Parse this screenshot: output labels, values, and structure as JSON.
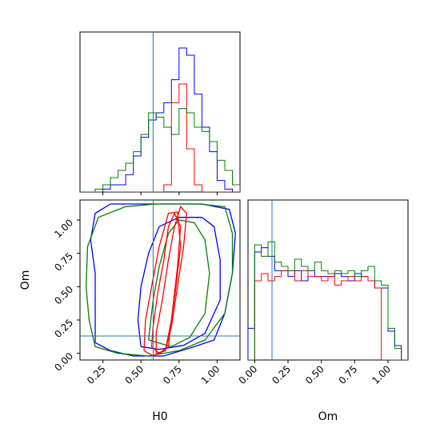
{
  "chart_data": {
    "type": "corner",
    "parameters": [
      "H0",
      "Om"
    ],
    "colors": {
      "blue": "#0000ff",
      "red": "#ff0000",
      "green": "#008000",
      "truth": "#1f77b4"
    },
    "truths": {
      "H0": 0.58,
      "Om": 0.13
    },
    "panels": {
      "hist_h0": {
        "xlim": [
          0.1,
          1.15
        ],
        "bins": [
          0.1,
          0.15,
          0.2,
          0.25,
          0.3,
          0.35,
          0.4,
          0.45,
          0.5,
          0.55,
          0.6,
          0.65,
          0.7,
          0.75,
          0.8,
          0.85,
          0.9,
          0.95,
          1.0,
          1.05,
          1.1,
          1.15
        ],
        "series": [
          {
            "color": "blue",
            "counts": [
              0,
              0,
              0,
              0.02,
              0.05,
              0.05,
              0.12,
              0.25,
              0.38,
              0.5,
              0.55,
              0.62,
              0.78,
              1.0,
              0.95,
              0.68,
              0.45,
              0.28,
              0.08,
              0.02,
              0
            ]
          },
          {
            "color": "red",
            "counts": [
              0,
              0,
              0,
              0,
              0,
              0,
              0,
              0,
              0,
              0,
              0,
              0.05,
              0.62,
              0.75,
              0.3,
              0.05,
              0,
              0,
              0,
              0,
              0
            ]
          },
          {
            "color": "green",
            "counts": [
              0,
              0,
              0.02,
              0.05,
              0.1,
              0.15,
              0.2,
              0.28,
              0.4,
              0.55,
              0.52,
              0.45,
              0.4,
              0.58,
              0.55,
              0.45,
              0.42,
              0.35,
              0.22,
              0.15,
              0.05
            ]
          }
        ]
      },
      "hist_om": {
        "xlim": [
          -0.05,
          1.15
        ],
        "bins": [
          -0.05,
          0.0,
          0.05,
          0.1,
          0.15,
          0.2,
          0.25,
          0.3,
          0.35,
          0.4,
          0.45,
          0.5,
          0.55,
          0.6,
          0.65,
          0.7,
          0.75,
          0.8,
          0.85,
          0.9,
          0.95,
          1.0,
          1.05,
          1.1,
          1.15
        ],
        "series": [
          {
            "color": "blue",
            "counts": [
              0.22,
              0.75,
              0.78,
              0.72,
              0.62,
              0.62,
              0.58,
              0.62,
              0.55,
              0.62,
              0.58,
              0.58,
              0.58,
              0.6,
              0.58,
              0.55,
              0.6,
              0.58,
              0.55,
              0.5,
              0.5,
              0.2,
              0.1,
              0
            ]
          },
          {
            "color": "red",
            "counts": [
              0,
              0.55,
              0.6,
              0.55,
              0.58,
              0.62,
              0.62,
              0.55,
              0.62,
              0.58,
              0.58,
              0.55,
              0.58,
              0.52,
              0.55,
              0.58,
              0.55,
              0.58,
              0.55,
              0.5,
              0,
              0,
              0,
              0
            ]
          },
          {
            "color": "green",
            "counts": [
              0,
              0.8,
              0.72,
              0.82,
              0.68,
              0.65,
              0.62,
              0.7,
              0.65,
              0.62,
              0.68,
              0.62,
              0.6,
              0.62,
              0.6,
              0.62,
              0.58,
              0.62,
              0.65,
              0.55,
              0.52,
              0.22,
              0.08,
              0
            ]
          }
        ]
      },
      "joint": {
        "xlim": [
          0.1,
          1.15
        ],
        "ylim": [
          -0.05,
          1.15
        ],
        "contours": [
          {
            "color": "blue",
            "points": [
              [
                0.2,
                0.08
              ],
              [
                0.3,
                0.02
              ],
              [
                0.45,
                -0.02
              ],
              [
                0.65,
                -0.02
              ],
              [
                0.85,
                0.05
              ],
              [
                0.98,
                0.1
              ],
              [
                1.05,
                0.3
              ],
              [
                1.1,
                0.6
              ],
              [
                1.12,
                0.9
              ],
              [
                1.08,
                1.08
              ],
              [
                0.9,
                1.12
              ],
              [
                0.6,
                1.12
              ],
              [
                0.3,
                1.12
              ],
              [
                0.2,
                1.05
              ],
              [
                0.17,
                0.85
              ],
              [
                0.2,
                0.6
              ],
              [
                0.2,
                0.35
              ],
              [
                0.2,
                0.08
              ]
            ]
          },
          {
            "color": "blue",
            "points": [
              [
                0.5,
                0.05
              ],
              [
                0.62,
                0.03
              ],
              [
                0.78,
                0.06
              ],
              [
                0.92,
                0.15
              ],
              [
                1.02,
                0.4
              ],
              [
                1.02,
                0.7
              ],
              [
                0.98,
                0.95
              ],
              [
                0.9,
                1.02
              ],
              [
                0.75,
                1.02
              ],
              [
                0.62,
                0.95
              ],
              [
                0.55,
                0.75
              ],
              [
                0.5,
                0.5
              ],
              [
                0.48,
                0.25
              ],
              [
                0.5,
                0.05
              ]
            ]
          },
          {
            "color": "green",
            "points": [
              [
                0.2,
                0.05
              ],
              [
                0.35,
                0.0
              ],
              [
                0.55,
                -0.02
              ],
              [
                0.75,
                0.02
              ],
              [
                0.92,
                0.1
              ],
              [
                1.05,
                0.3
              ],
              [
                1.1,
                0.6
              ],
              [
                1.1,
                0.9
              ],
              [
                1.05,
                1.1
              ],
              [
                0.88,
                1.12
              ],
              [
                0.6,
                1.12
              ],
              [
                0.4,
                1.1
              ],
              [
                0.22,
                1.02
              ],
              [
                0.15,
                0.8
              ],
              [
                0.14,
                0.5
              ],
              [
                0.16,
                0.25
              ],
              [
                0.2,
                0.05
              ]
            ]
          },
          {
            "color": "green",
            "points": [
              [
                0.55,
                0.1
              ],
              [
                0.7,
                0.05
              ],
              [
                0.82,
                0.12
              ],
              [
                0.92,
                0.3
              ],
              [
                0.95,
                0.6
              ],
              [
                0.92,
                0.85
              ],
              [
                0.85,
                0.98
              ],
              [
                0.75,
                1.0
              ],
              [
                0.68,
                0.9
              ],
              [
                0.62,
                0.65
              ],
              [
                0.58,
                0.4
              ],
              [
                0.55,
                0.1
              ]
            ]
          },
          {
            "color": "red",
            "points": [
              [
                0.6,
                0.0
              ],
              [
                0.66,
                0.02
              ],
              [
                0.7,
                0.2
              ],
              [
                0.74,
                0.5
              ],
              [
                0.78,
                0.8
              ],
              [
                0.8,
                1.05
              ],
              [
                0.76,
                1.1
              ],
              [
                0.72,
                0.95
              ],
              [
                0.68,
                0.7
              ],
              [
                0.64,
                0.4
              ],
              [
                0.6,
                0.15
              ],
              [
                0.6,
                0.0
              ]
            ]
          },
          {
            "color": "red",
            "points": [
              [
                0.57,
                0.05
              ],
              [
                0.62,
                0.0
              ],
              [
                0.68,
                0.05
              ],
              [
                0.71,
                0.35
              ],
              [
                0.74,
                0.65
              ],
              [
                0.76,
                0.95
              ],
              [
                0.72,
                1.05
              ],
              [
                0.68,
                0.95
              ],
              [
                0.65,
                0.7
              ],
              [
                0.61,
                0.45
              ],
              [
                0.58,
                0.2
              ],
              [
                0.57,
                0.05
              ]
            ]
          },
          {
            "color": "red",
            "points": [
              [
                0.52,
                0.02
              ],
              [
                0.58,
                -0.02
              ],
              [
                0.66,
                0.02
              ],
              [
                0.7,
                0.25
              ],
              [
                0.73,
                0.5
              ],
              [
                0.76,
                0.8
              ],
              [
                0.74,
                1.06
              ],
              [
                0.68,
                1.05
              ],
              [
                0.62,
                0.8
              ],
              [
                0.57,
                0.5
              ],
              [
                0.53,
                0.25
              ],
              [
                0.52,
                0.02
              ]
            ]
          }
        ]
      }
    },
    "ticks": {
      "h0": [
        0.25,
        0.5,
        0.75,
        1.0
      ],
      "h0_labels": [
        "0.25",
        "0.50",
        "0.75",
        "1.00"
      ],
      "om": [
        0.0,
        0.25,
        0.5,
        0.75,
        1.0
      ],
      "om_labels": [
        "0.00",
        "0.25",
        "0.50",
        "0.75",
        "1.00"
      ]
    },
    "xlabel_left": "H0",
    "xlabel_right": "Om",
    "ylabel": "Om"
  }
}
